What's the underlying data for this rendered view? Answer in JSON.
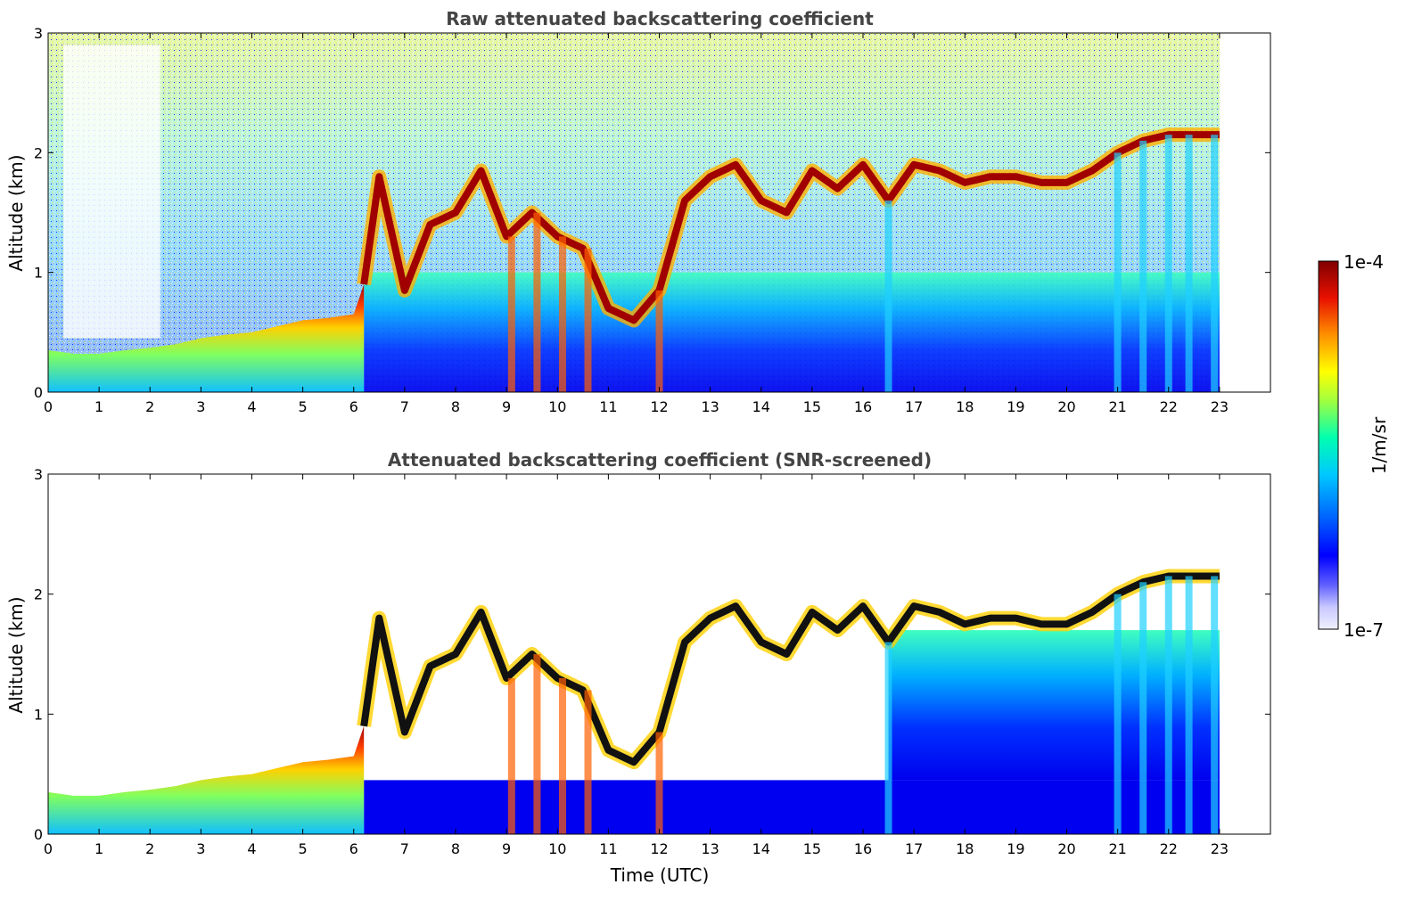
{
  "chart_data": [
    {
      "type": "heatmap",
      "panel": "raw",
      "title": "Raw attenuated backscattering coefficient",
      "xlabel": "",
      "ylabel": "Altitude (km)",
      "xlim": [
        0,
        24
      ],
      "ylim": [
        0,
        3
      ],
      "x_ticks": [
        "0",
        "1",
        "2",
        "3",
        "4",
        "5",
        "6",
        "7",
        "8",
        "9",
        "10",
        "11",
        "12",
        "13",
        "14",
        "15",
        "16",
        "17",
        "18",
        "19",
        "20",
        "21",
        "22",
        "23"
      ],
      "y_ticks": [
        "0",
        "1",
        "2",
        "3"
      ],
      "data_end_time": 23,
      "layer_top_km": [
        [
          0,
          0.35
        ],
        [
          0.5,
          0.32
        ],
        [
          1,
          0.32
        ],
        [
          1.5,
          0.35
        ],
        [
          2,
          0.37
        ],
        [
          2.5,
          0.4
        ],
        [
          3,
          0.45
        ],
        [
          3.5,
          0.48
        ],
        [
          4,
          0.5
        ],
        [
          4.5,
          0.55
        ],
        [
          5,
          0.6
        ],
        [
          5.5,
          0.62
        ],
        [
          6,
          0.65
        ],
        [
          6.2,
          0.9
        ],
        [
          6.5,
          1.8
        ],
        [
          7,
          0.85
        ],
        [
          7.5,
          1.4
        ],
        [
          8,
          1.5
        ],
        [
          8.5,
          1.85
        ],
        [
          9,
          1.3
        ],
        [
          9.5,
          1.5
        ],
        [
          10,
          1.3
        ],
        [
          10.5,
          1.2
        ],
        [
          11,
          0.7
        ],
        [
          11.5,
          0.6
        ],
        [
          12,
          0.85
        ],
        [
          12.5,
          1.6
        ],
        [
          13,
          1.8
        ],
        [
          13.5,
          1.9
        ],
        [
          14,
          1.6
        ],
        [
          14.5,
          1.5
        ],
        [
          15,
          1.85
        ],
        [
          15.5,
          1.7
        ],
        [
          16,
          1.9
        ],
        [
          16.5,
          1.6
        ],
        [
          17,
          1.9
        ],
        [
          17.5,
          1.85
        ],
        [
          18,
          1.75
        ],
        [
          18.5,
          1.8
        ],
        [
          19,
          1.8
        ],
        [
          19.5,
          1.75
        ],
        [
          20,
          1.75
        ],
        [
          20.5,
          1.85
        ],
        [
          21,
          2.0
        ],
        [
          21.5,
          2.1
        ],
        [
          22,
          2.15
        ],
        [
          22.5,
          2.15
        ],
        [
          23,
          2.15
        ]
      ]
    },
    {
      "type": "heatmap",
      "panel": "screened",
      "title": "Attenuated backscattering coefficient (SNR-screened)",
      "xlabel": "Time (UTC)",
      "ylabel": "Altitude (km)",
      "xlim": [
        0,
        24
      ],
      "ylim": [
        0,
        3
      ],
      "x_ticks": [
        "0",
        "1",
        "2",
        "3",
        "4",
        "5",
        "6",
        "7",
        "8",
        "9",
        "10",
        "11",
        "12",
        "13",
        "14",
        "15",
        "16",
        "17",
        "18",
        "19",
        "20",
        "21",
        "22",
        "23"
      ],
      "y_ticks": [
        "0",
        "1",
        "2",
        "3"
      ],
      "data_end_time": 23,
      "layer_top_km": [
        [
          0,
          0.35
        ],
        [
          0.5,
          0.32
        ],
        [
          1,
          0.32
        ],
        [
          1.5,
          0.35
        ],
        [
          2,
          0.37
        ],
        [
          2.5,
          0.4
        ],
        [
          3,
          0.45
        ],
        [
          3.5,
          0.48
        ],
        [
          4,
          0.5
        ],
        [
          4.5,
          0.55
        ],
        [
          5,
          0.6
        ],
        [
          5.5,
          0.62
        ],
        [
          6,
          0.65
        ],
        [
          6.2,
          0.9
        ],
        [
          6.5,
          1.8
        ],
        [
          7,
          0.85
        ],
        [
          7.5,
          1.4
        ],
        [
          8,
          1.5
        ],
        [
          8.5,
          1.85
        ],
        [
          9,
          1.3
        ],
        [
          9.5,
          1.5
        ],
        [
          10,
          1.3
        ],
        [
          10.5,
          1.2
        ],
        [
          11,
          0.7
        ],
        [
          11.5,
          0.6
        ],
        [
          12,
          0.85
        ],
        [
          12.5,
          1.6
        ],
        [
          13,
          1.8
        ],
        [
          13.5,
          1.9
        ],
        [
          14,
          1.6
        ],
        [
          14.5,
          1.5
        ],
        [
          15,
          1.85
        ],
        [
          15.5,
          1.7
        ],
        [
          16,
          1.9
        ],
        [
          16.5,
          1.6
        ],
        [
          17,
          1.9
        ],
        [
          17.5,
          1.85
        ],
        [
          18,
          1.75
        ],
        [
          18.5,
          1.8
        ],
        [
          19,
          1.8
        ],
        [
          19.5,
          1.75
        ],
        [
          20,
          1.75
        ],
        [
          20.5,
          1.85
        ],
        [
          21,
          2.0
        ],
        [
          21.5,
          2.1
        ],
        [
          22,
          2.15
        ],
        [
          22.5,
          2.15
        ],
        [
          23,
          2.15
        ]
      ]
    }
  ],
  "colorbar": {
    "label": "1/m/sr",
    "max_label": "1e-4",
    "min_label": "1e-7",
    "scale": "log",
    "range": [
      1e-07,
      0.0001
    ],
    "colormap": [
      "#f0f0ff",
      "#c8c8ff",
      "#8080ff",
      "#0000ff",
      "#0060ff",
      "#00c0ff",
      "#00ffc0",
      "#80ff60",
      "#ffff00",
      "#ffa000",
      "#ff3000",
      "#c00000",
      "#800000"
    ]
  }
}
